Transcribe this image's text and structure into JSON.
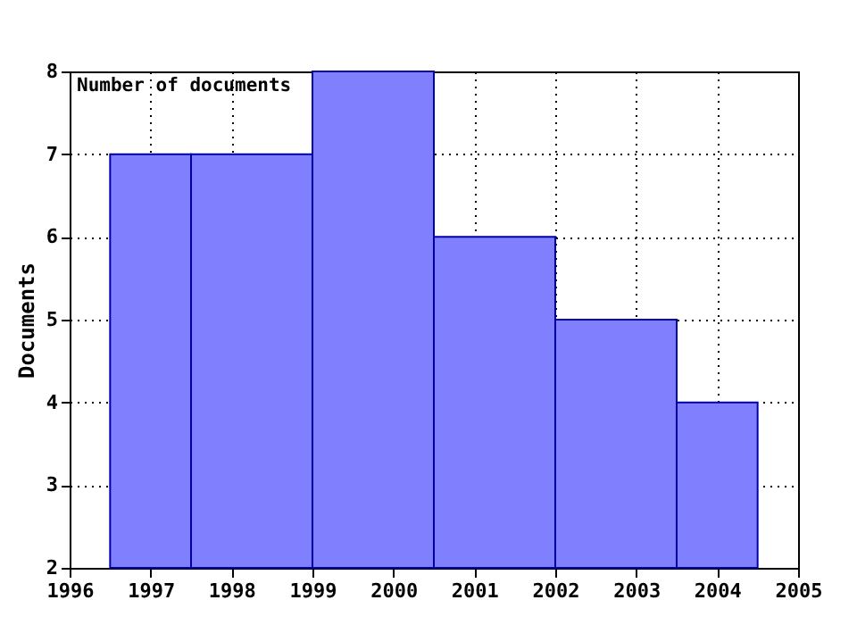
{
  "chart_data": {
    "type": "histogram",
    "ylabel": "Documents",
    "annotations": [
      "Number of documents"
    ],
    "bins": [
      1996.5,
      1997.5,
      1999,
      2000.5,
      2002,
      2003.5,
      2004.5
    ],
    "values": [
      7,
      7,
      8,
      6,
      5,
      4
    ],
    "color": "#8080ff",
    "xlim": [
      1996,
      2005
    ],
    "xticks": [
      1996,
      1997,
      1998,
      1999,
      2000,
      2001,
      2002,
      2003,
      2004,
      2005
    ],
    "ylim": [
      2,
      8
    ],
    "yticks": [
      2,
      3,
      4,
      5,
      6,
      7,
      8
    ],
    "grid": true
  }
}
